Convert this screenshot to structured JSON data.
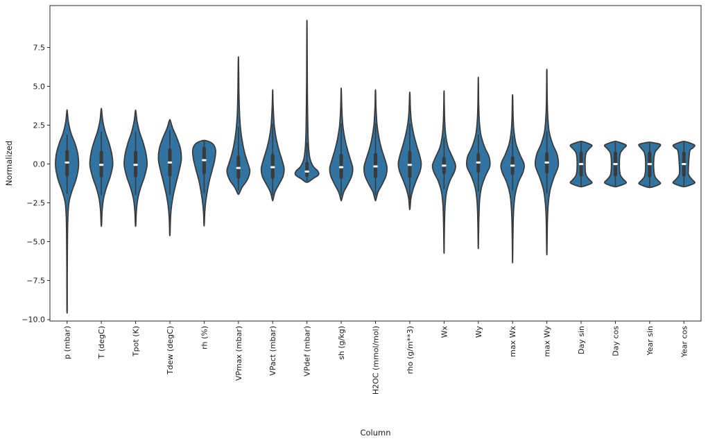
{
  "figure": {
    "background": "#ffffff"
  },
  "chart_data": {
    "type": "violin",
    "title": "",
    "xlabel": "Column",
    "ylabel": "Normalized",
    "ylim": [
      -10.1,
      10.2
    ],
    "yticks": [
      -10.0,
      -7.5,
      -5.0,
      -2.5,
      0.0,
      2.5,
      5.0,
      7.5
    ],
    "grid": false,
    "legend": "none",
    "colors": {
      "violin_fill": "#3274a1",
      "violin_edge": "#3a3a3a",
      "inner_box": "#3a3a3a",
      "whisker": "#3a3a3a",
      "median": "#ffffff",
      "spine": "#262626",
      "tick_label": "#1a1a1a"
    },
    "categories": [
      "p (mbar)",
      "T (degC)",
      "Tpot (K)",
      "Tdew (degC)",
      "rh (%)",
      "VPmax (mbar)",
      "VPact (mbar)",
      "VPdef (mbar)",
      "sh (g/kg)",
      "H2OC (mmol/mol)",
      "rho (g/m**3)",
      "Wx",
      "Wy",
      "max Wx",
      "max Wy",
      "Day sin",
      "Day cos",
      "Year sin",
      "Year cos"
    ],
    "violins": [
      {
        "label": "p (mbar)",
        "min": -9.3,
        "max": 3.4,
        "median": 0.1,
        "q1": -0.7,
        "q3": 0.8,
        "wlo": -1.9,
        "whi": 1.9,
        "profile": [
          [
            -9.3,
            0.015
          ],
          [
            -7.0,
            0.02
          ],
          [
            -5.0,
            0.035
          ],
          [
            -3.5,
            0.07
          ],
          [
            -2.5,
            0.16
          ],
          [
            -1.8,
            0.4
          ],
          [
            -1.0,
            0.78
          ],
          [
            -0.2,
            1.0
          ],
          [
            0.6,
            0.95
          ],
          [
            1.3,
            0.7
          ],
          [
            2.0,
            0.34
          ],
          [
            2.7,
            0.12
          ],
          [
            3.4,
            0.02
          ]
        ]
      },
      {
        "label": "T (degC)",
        "min": -3.9,
        "max": 3.5,
        "median": -0.05,
        "q1": -0.75,
        "q3": 0.75,
        "wlo": -2.0,
        "whi": 2.1,
        "profile": [
          [
            -3.9,
            0.02
          ],
          [
            -3.0,
            0.07
          ],
          [
            -2.2,
            0.2
          ],
          [
            -1.5,
            0.45
          ],
          [
            -0.8,
            0.78
          ],
          [
            -0.05,
            1.0
          ],
          [
            0.7,
            0.9
          ],
          [
            1.4,
            0.65
          ],
          [
            2.1,
            0.33
          ],
          [
            2.8,
            0.12
          ],
          [
            3.5,
            0.02
          ]
        ]
      },
      {
        "label": "Tpot (K)",
        "min": -3.9,
        "max": 3.4,
        "median": -0.05,
        "q1": -0.75,
        "q3": 0.75,
        "wlo": -2.0,
        "whi": 2.1,
        "profile": [
          [
            -3.9,
            0.02
          ],
          [
            -3.0,
            0.07
          ],
          [
            -2.2,
            0.2
          ],
          [
            -1.5,
            0.45
          ],
          [
            -0.8,
            0.78
          ],
          [
            -0.05,
            1.0
          ],
          [
            0.7,
            0.9
          ],
          [
            1.4,
            0.65
          ],
          [
            2.1,
            0.33
          ],
          [
            2.8,
            0.12
          ],
          [
            3.4,
            0.02
          ]
        ]
      },
      {
        "label": "Tdew (degC)",
        "min": -4.5,
        "max": 2.8,
        "median": 0.1,
        "q1": -0.7,
        "q3": 0.9,
        "wlo": -2.0,
        "whi": 2.2,
        "profile": [
          [
            -4.5,
            0.015
          ],
          [
            -3.6,
            0.05
          ],
          [
            -2.8,
            0.13
          ],
          [
            -2.0,
            0.3
          ],
          [
            -1.2,
            0.55
          ],
          [
            -0.4,
            0.82
          ],
          [
            0.3,
            1.0
          ],
          [
            1.0,
            0.92
          ],
          [
            1.7,
            0.6
          ],
          [
            2.3,
            0.25
          ],
          [
            2.8,
            0.04
          ]
        ]
      },
      {
        "label": "rh (%)",
        "min": -3.9,
        "max": 1.5,
        "median": 0.25,
        "q1": -0.55,
        "q3": 1.0,
        "wlo": -1.9,
        "whi": 1.5,
        "profile": [
          [
            -3.9,
            0.015
          ],
          [
            -3.2,
            0.05
          ],
          [
            -2.5,
            0.13
          ],
          [
            -1.8,
            0.27
          ],
          [
            -1.1,
            0.45
          ],
          [
            -0.4,
            0.7
          ],
          [
            0.3,
            0.93
          ],
          [
            0.9,
            1.0
          ],
          [
            1.3,
            0.75
          ],
          [
            1.5,
            0.2
          ]
        ]
      },
      {
        "label": "VPmax (mbar)",
        "min": -1.9,
        "max": 6.75,
        "median": -0.25,
        "q1": -0.85,
        "q3": 0.45,
        "wlo": -1.7,
        "whi": 2.4,
        "profile": [
          [
            -1.9,
            0.06
          ],
          [
            -1.5,
            0.32
          ],
          [
            -1.0,
            0.78
          ],
          [
            -0.45,
            1.0
          ],
          [
            0.1,
            0.8
          ],
          [
            0.7,
            0.55
          ],
          [
            1.4,
            0.35
          ],
          [
            2.2,
            0.2
          ],
          [
            3.2,
            0.1
          ],
          [
            4.5,
            0.05
          ],
          [
            5.6,
            0.03
          ],
          [
            6.75,
            0.01
          ]
        ]
      },
      {
        "label": "VPact (mbar)",
        "min": -2.3,
        "max": 4.7,
        "median": -0.2,
        "q1": -0.85,
        "q3": 0.55,
        "wlo": -2.0,
        "whi": 2.6,
        "profile": [
          [
            -2.3,
            0.03
          ],
          [
            -1.8,
            0.2
          ],
          [
            -1.3,
            0.55
          ],
          [
            -0.8,
            0.9
          ],
          [
            -0.3,
            1.0
          ],
          [
            0.3,
            0.8
          ],
          [
            0.9,
            0.55
          ],
          [
            1.6,
            0.32
          ],
          [
            2.4,
            0.15
          ],
          [
            3.3,
            0.07
          ],
          [
            4.0,
            0.03
          ],
          [
            4.7,
            0.01
          ]
        ]
      },
      {
        "label": "VPdef (mbar)",
        "min": -1.15,
        "max": 9.0,
        "median": -0.48,
        "q1": -0.72,
        "q3": 0.05,
        "wlo": -1.1,
        "whi": 1.4,
        "profile": [
          [
            -1.15,
            0.12
          ],
          [
            -0.95,
            0.5
          ],
          [
            -0.7,
            1.0
          ],
          [
            -0.45,
            0.95
          ],
          [
            -0.15,
            0.55
          ],
          [
            0.3,
            0.28
          ],
          [
            0.9,
            0.16
          ],
          [
            1.7,
            0.1
          ],
          [
            2.7,
            0.07
          ],
          [
            4.0,
            0.045
          ],
          [
            5.5,
            0.03
          ],
          [
            7.0,
            0.02
          ],
          [
            9.0,
            0.008
          ]
        ]
      },
      {
        "label": "sh (g/kg)",
        "min": -2.3,
        "max": 4.8,
        "median": -0.2,
        "q1": -0.85,
        "q3": 0.55,
        "wlo": -2.0,
        "whi": 2.6,
        "profile": [
          [
            -2.3,
            0.03
          ],
          [
            -1.8,
            0.22
          ],
          [
            -1.3,
            0.58
          ],
          [
            -0.75,
            0.92
          ],
          [
            -0.25,
            1.0
          ],
          [
            0.35,
            0.78
          ],
          [
            1.0,
            0.52
          ],
          [
            1.7,
            0.3
          ],
          [
            2.5,
            0.14
          ],
          [
            3.4,
            0.06
          ],
          [
            4.1,
            0.03
          ],
          [
            4.8,
            0.01
          ]
        ]
      },
      {
        "label": "H2OC (mmol/mol)",
        "min": -2.3,
        "max": 4.7,
        "median": -0.15,
        "q1": -0.8,
        "q3": 0.6,
        "wlo": -2.0,
        "whi": 2.6,
        "profile": [
          [
            -2.3,
            0.03
          ],
          [
            -1.8,
            0.22
          ],
          [
            -1.3,
            0.58
          ],
          [
            -0.75,
            0.92
          ],
          [
            -0.2,
            1.0
          ],
          [
            0.4,
            0.78
          ],
          [
            1.0,
            0.52
          ],
          [
            1.7,
            0.3
          ],
          [
            2.5,
            0.14
          ],
          [
            3.4,
            0.06
          ],
          [
            4.0,
            0.03
          ],
          [
            4.7,
            0.01
          ]
        ]
      },
      {
        "label": "rho (g/m**3)",
        "min": -2.85,
        "max": 4.5,
        "median": -0.05,
        "q1": -0.8,
        "q3": 0.75,
        "wlo": -2.3,
        "whi": 2.6,
        "profile": [
          [
            -2.85,
            0.02
          ],
          [
            -2.2,
            0.1
          ],
          [
            -1.6,
            0.3
          ],
          [
            -1.0,
            0.6
          ],
          [
            -0.45,
            0.9
          ],
          [
            0.05,
            1.0
          ],
          [
            0.6,
            0.85
          ],
          [
            1.2,
            0.6
          ],
          [
            1.9,
            0.35
          ],
          [
            2.7,
            0.15
          ],
          [
            3.5,
            0.06
          ],
          [
            4.5,
            0.015
          ]
        ]
      },
      {
        "label": "Wx",
        "min": -5.6,
        "max": 4.6,
        "median": -0.1,
        "q1": -0.55,
        "q3": 0.35,
        "wlo": -1.6,
        "whi": 1.7,
        "profile": [
          [
            -5.6,
            0.01
          ],
          [
            -4.5,
            0.025
          ],
          [
            -3.5,
            0.05
          ],
          [
            -2.6,
            0.1
          ],
          [
            -1.8,
            0.22
          ],
          [
            -1.1,
            0.5
          ],
          [
            -0.5,
            0.9
          ],
          [
            -0.05,
            1.0
          ],
          [
            0.5,
            0.7
          ],
          [
            1.1,
            0.35
          ],
          [
            1.9,
            0.14
          ],
          [
            2.8,
            0.06
          ],
          [
            3.7,
            0.025
          ],
          [
            4.6,
            0.01
          ]
        ]
      },
      {
        "label": "Wy",
        "min": -5.3,
        "max": 5.4,
        "median": 0.1,
        "q1": -0.45,
        "q3": 0.6,
        "wlo": -1.75,
        "whi": 1.9,
        "profile": [
          [
            -5.3,
            0.01
          ],
          [
            -4.2,
            0.03
          ],
          [
            -3.2,
            0.06
          ],
          [
            -2.3,
            0.12
          ],
          [
            -1.5,
            0.28
          ],
          [
            -0.8,
            0.6
          ],
          [
            -0.15,
            1.0
          ],
          [
            0.45,
            0.95
          ],
          [
            1.1,
            0.55
          ],
          [
            1.9,
            0.22
          ],
          [
            2.8,
            0.09
          ],
          [
            3.9,
            0.035
          ],
          [
            5.4,
            0.01
          ]
        ]
      },
      {
        "label": "max Wx",
        "min": -6.2,
        "max": 4.3,
        "median": -0.1,
        "q1": -0.6,
        "q3": 0.4,
        "wlo": -1.7,
        "whi": 1.8,
        "profile": [
          [
            -6.2,
            0.01
          ],
          [
            -5.0,
            0.025
          ],
          [
            -3.9,
            0.05
          ],
          [
            -2.9,
            0.1
          ],
          [
            -2.0,
            0.22
          ],
          [
            -1.2,
            0.5
          ],
          [
            -0.5,
            0.92
          ],
          [
            0.0,
            1.0
          ],
          [
            0.6,
            0.65
          ],
          [
            1.3,
            0.3
          ],
          [
            2.1,
            0.12
          ],
          [
            3.0,
            0.05
          ],
          [
            4.3,
            0.015
          ]
        ]
      },
      {
        "label": "max Wy",
        "min": -5.7,
        "max": 5.9,
        "median": 0.1,
        "q1": -0.5,
        "q3": 0.65,
        "wlo": -1.9,
        "whi": 2.1,
        "profile": [
          [
            -5.7,
            0.01
          ],
          [
            -4.6,
            0.03
          ],
          [
            -3.5,
            0.06
          ],
          [
            -2.6,
            0.12
          ],
          [
            -1.7,
            0.28
          ],
          [
            -0.9,
            0.6
          ],
          [
            -0.1,
            1.0
          ],
          [
            0.6,
            0.9
          ],
          [
            1.3,
            0.5
          ],
          [
            2.1,
            0.2
          ],
          [
            3.1,
            0.08
          ],
          [
            4.3,
            0.03
          ],
          [
            5.9,
            0.01
          ]
        ]
      },
      {
        "label": "Day sin",
        "min": -1.45,
        "max": 1.45,
        "median": 0.0,
        "q1": -0.7,
        "q3": 0.7,
        "wlo": -1.4,
        "whi": 1.4,
        "profile": [
          [
            -1.45,
            0.1
          ],
          [
            -1.35,
            0.55
          ],
          [
            -1.2,
            0.95
          ],
          [
            -1.0,
            0.72
          ],
          [
            -0.75,
            0.46
          ],
          [
            -0.45,
            0.37
          ],
          [
            0.0,
            0.35
          ],
          [
            0.45,
            0.37
          ],
          [
            0.75,
            0.46
          ],
          [
            1.0,
            0.72
          ],
          [
            1.2,
            0.95
          ],
          [
            1.35,
            0.55
          ],
          [
            1.45,
            0.1
          ]
        ]
      },
      {
        "label": "Day cos",
        "min": -1.45,
        "max": 1.45,
        "median": 0.0,
        "q1": -0.7,
        "q3": 0.7,
        "wlo": -1.4,
        "whi": 1.4,
        "profile": [
          [
            -1.45,
            0.1
          ],
          [
            -1.35,
            0.55
          ],
          [
            -1.2,
            0.95
          ],
          [
            -1.0,
            0.72
          ],
          [
            -0.75,
            0.46
          ],
          [
            -0.45,
            0.37
          ],
          [
            0.0,
            0.35
          ],
          [
            0.45,
            0.37
          ],
          [
            0.75,
            0.46
          ],
          [
            1.0,
            0.72
          ],
          [
            1.2,
            0.95
          ],
          [
            1.35,
            0.55
          ],
          [
            1.45,
            0.1
          ]
        ]
      },
      {
        "label": "Year sin",
        "min": -1.5,
        "max": 1.4,
        "median": 0.0,
        "q1": -0.75,
        "q3": 0.7,
        "wlo": -1.45,
        "whi": 1.35,
        "profile": [
          [
            -1.5,
            0.1
          ],
          [
            -1.4,
            0.55
          ],
          [
            -1.25,
            0.95
          ],
          [
            -1.05,
            0.72
          ],
          [
            -0.8,
            0.46
          ],
          [
            -0.45,
            0.37
          ],
          [
            0.0,
            0.35
          ],
          [
            0.45,
            0.38
          ],
          [
            0.8,
            0.5
          ],
          [
            1.05,
            0.78
          ],
          [
            1.25,
            0.95
          ],
          [
            1.35,
            0.5
          ],
          [
            1.4,
            0.08
          ]
        ]
      },
      {
        "label": "Year cos",
        "min": -1.45,
        "max": 1.45,
        "median": 0.0,
        "q1": -0.7,
        "q3": 0.7,
        "wlo": -1.4,
        "whi": 1.4,
        "profile": [
          [
            -1.45,
            0.1
          ],
          [
            -1.35,
            0.55
          ],
          [
            -1.2,
            0.95
          ],
          [
            -1.0,
            0.72
          ],
          [
            -0.75,
            0.46
          ],
          [
            -0.45,
            0.38
          ],
          [
            0.78,
            0.5
          ],
          [
            1.02,
            0.75
          ],
          [
            1.2,
            0.95
          ],
          [
            1.35,
            0.55
          ],
          [
            1.45,
            0.1
          ]
        ]
      }
    ]
  }
}
